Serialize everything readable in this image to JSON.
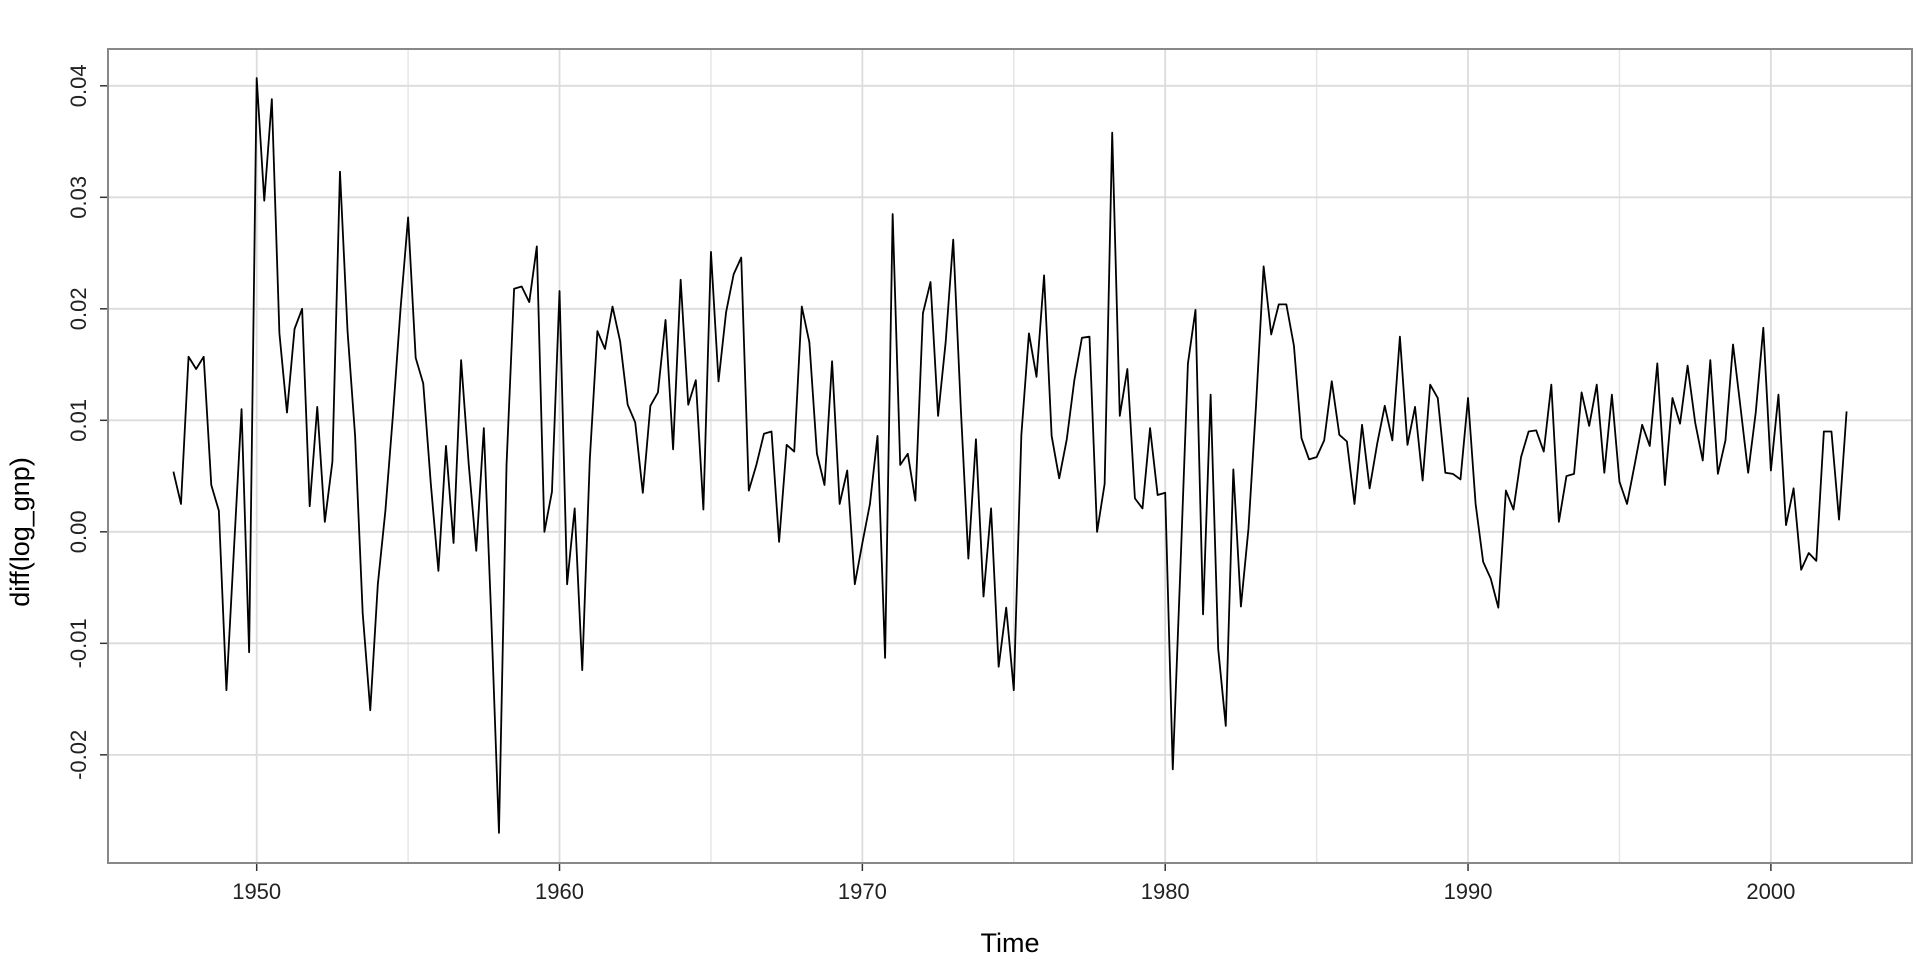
{
  "chart_data": {
    "type": "line",
    "xlabel": "Time",
    "ylabel": "diff(log_gnp)",
    "xlim": [
      1945.09,
      2004.66
    ],
    "ylim": [
      -0.0297,
      0.0433
    ],
    "xticks": [
      1950,
      1960,
      1970,
      1980,
      1990,
      2000
    ],
    "xminor": [
      1955,
      1965,
      1975,
      1985,
      1995
    ],
    "yticks": [
      -0.02,
      -0.01,
      {
        "value": 0,
        "label": "0.00"
      },
      0.01,
      0.02,
      0.03,
      0.04
    ],
    "grid": true,
    "x": [
      1947.25,
      1947.5,
      1947.75,
      1948,
      1948.25,
      1948.5,
      1948.75,
      1949,
      1949.25,
      1949.5,
      1949.75,
      1950,
      1950.25,
      1950.5,
      1950.75,
      1951,
      1951.25,
      1951.5,
      1951.75,
      1952,
      1952.25,
      1952.5,
      1952.75,
      1953,
      1953.25,
      1953.5,
      1953.75,
      1954,
      1954.25,
      1954.5,
      1954.75,
      1955,
      1955.25,
      1955.5,
      1955.75,
      1956,
      1956.25,
      1956.5,
      1956.75,
      1957,
      1957.25,
      1957.5,
      1957.75,
      1958,
      1958.25,
      1958.5,
      1958.75,
      1959,
      1959.25,
      1959.5,
      1959.75,
      1960,
      1960.25,
      1960.5,
      1960.75,
      1961,
      1961.25,
      1961.5,
      1961.75,
      1962,
      1962.25,
      1962.5,
      1962.75,
      1963,
      1963.25,
      1963.5,
      1963.75,
      1964,
      1964.25,
      1964.5,
      1964.75,
      1965,
      1965.25,
      1965.5,
      1965.75,
      1966,
      1966.25,
      1966.5,
      1966.75,
      1967,
      1967.25,
      1967.5,
      1967.75,
      1968,
      1968.25,
      1968.5,
      1968.75,
      1969,
      1969.25,
      1969.5,
      1969.75,
      1970,
      1970.25,
      1970.5,
      1970.75,
      1971,
      1971.25,
      1971.5,
      1971.75,
      1972,
      1972.25,
      1972.5,
      1972.75,
      1973,
      1973.25,
      1973.5,
      1973.75,
      1974,
      1974.25,
      1974.5,
      1974.75,
      1975,
      1975.25,
      1975.5,
      1975.75,
      1976,
      1976.25,
      1976.5,
      1976.75,
      1977,
      1977.25,
      1977.5,
      1977.75,
      1978,
      1978.25,
      1978.5,
      1978.75,
      1979,
      1979.25,
      1979.5,
      1979.75,
      1980,
      1980.25,
      1980.5,
      1980.75,
      1981,
      1981.25,
      1981.5,
      1981.75,
      1982,
      1982.25,
      1982.5,
      1982.75,
      1983,
      1983.25,
      1983.5,
      1983.75,
      1984,
      1984.25,
      1984.5,
      1984.75,
      1985,
      1985.25,
      1985.5,
      1985.75,
      1986,
      1986.25,
      1986.5,
      1986.75,
      1987,
      1987.25,
      1987.5,
      1987.75,
      1988,
      1988.25,
      1988.5,
      1988.75,
      1989,
      1989.25,
      1989.5,
      1989.75,
      1990,
      1990.25,
      1990.5,
      1990.75,
      1991,
      1991.25,
      1991.5,
      1991.75,
      1992,
      1992.25,
      1992.5,
      1992.75,
      1993,
      1993.25,
      1993.5,
      1993.75,
      1994,
      1994.25,
      1994.5,
      1994.75,
      1995,
      1995.25,
      1995.5,
      1995.75,
      1996,
      1996.25,
      1996.5,
      1996.75,
      1997,
      1997.25,
      1997.5,
      1997.75,
      1998,
      1998.25,
      1998.5,
      1998.75,
      1999,
      1999.25,
      1999.5,
      1999.75,
      2000,
      2000.25,
      2000.5,
      2000.75,
      2001,
      2001.25,
      2001.5,
      2001.75,
      2002,
      2002.25,
      2002.5
    ],
    "series": [
      {
        "color": "#000000",
        "values": [
          0.0054,
          0.0025,
          0.0157,
          0.0146,
          0.0157,
          0.0042,
          0.0019,
          -0.0142,
          -0.0015,
          0.011,
          -0.0108,
          0.0407,
          0.0297,
          0.0388,
          0.0178,
          0.0107,
          0.0182,
          0.02,
          0.0023,
          0.0112,
          0.0009,
          0.0063,
          0.0323,
          0.018,
          0.0086,
          -0.0073,
          -0.016,
          -0.0047,
          0.0019,
          0.0105,
          0.02,
          0.0282,
          0.0156,
          0.0133,
          0.0043,
          -0.0035,
          0.0077,
          -0.001,
          0.0154,
          0.0061,
          -0.0017,
          0.0093,
          -0.008,
          -0.027,
          0.006,
          0.0218,
          0.022,
          0.0206,
          0.0256,
          0,
          0.0036,
          0.0216,
          -0.0047,
          0.0021,
          -0.0124,
          0.0065,
          0.018,
          0.0164,
          0.0202,
          0.0171,
          0.0114,
          0.0098,
          0.0035,
          0.0113,
          0.0125,
          0.019,
          0.0074,
          0.0226,
          0.0114,
          0.0136,
          0.002,
          0.0251,
          0.0135,
          0.0197,
          0.0231,
          0.0246,
          0.0037,
          0.006,
          0.0088,
          0.009,
          -0.0009,
          0.0078,
          0.0072,
          0.0202,
          0.017,
          0.007,
          0.0042,
          0.0153,
          0.0025,
          0.0055,
          -0.0047,
          -0.001,
          0.0025,
          0.0086,
          -0.0113,
          0.0285,
          0.006,
          0.007,
          0.0028,
          0.0196,
          0.0224,
          0.0104,
          0.017,
          0.0262,
          0.0111,
          -0.0024,
          0.0083,
          -0.0058,
          0.0021,
          -0.0121,
          -0.0068,
          -0.0142,
          0.0087,
          0.0178,
          0.0139,
          0.023,
          0.0086,
          0.0048,
          0.0083,
          0.0136,
          0.0174,
          0.0175,
          0,
          0.0043,
          0.0358,
          0.0104,
          0.0146,
          0.003,
          0.0021,
          0.0093,
          0.0033,
          0.0035,
          -0.0213,
          -0.0034,
          0.0151,
          0.0199,
          -0.0074,
          0.0123,
          -0.0105,
          -0.0174,
          0.0056,
          -0.0067,
          0.0003,
          0.0114,
          0.0238,
          0.0177,
          0.0204,
          0.0204,
          0.0167,
          0.0084,
          0.0065,
          0.0067,
          0.0082,
          0.0135,
          0.0087,
          0.0081,
          0.0025,
          0.0096,
          0.0039,
          0.0079,
          0.0113,
          0.0082,
          0.0175,
          0.0078,
          0.0112,
          0.0046,
          0.0132,
          0.012,
          0.0053,
          0.0052,
          0.0047,
          0.012,
          0.0025,
          -0.0027,
          -0.0042,
          -0.0068,
          0.0037,
          0.002,
          0.0067,
          0.009,
          0.0091,
          0.0072,
          0.0132,
          0.0009,
          0.005,
          0.0052,
          0.0125,
          0.0095,
          0.0132,
          0.0053,
          0.0123,
          0.0045,
          0.0025,
          0.006,
          0.0096,
          0.0077,
          0.0151,
          0.0042,
          0.012,
          0.0097,
          0.0149,
          0.0098,
          0.0064,
          0.0154,
          0.0052,
          0.0082,
          0.0168,
          0.0111,
          0.0053,
          0.0107,
          0.0183,
          0.0055,
          0.0123,
          0.0006,
          0.0039,
          -0.0034,
          -0.0019,
          -0.0026,
          0.009,
          0.009,
          0.0011,
          0.0108
        ]
      }
    ]
  }
}
